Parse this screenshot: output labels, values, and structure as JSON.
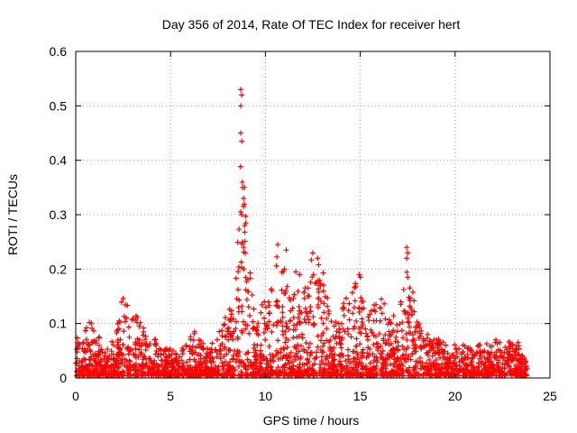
{
  "chart_data": {
    "type": "scatter",
    "title": "Day 356 of 2014, Rate Of TEC Index for receiver hert",
    "xlabel": "GPS time / hours",
    "ylabel": "ROTI / TECUs",
    "xlim": [
      0,
      25
    ],
    "ylim": [
      0,
      0.6
    ],
    "xticks": [
      "0",
      "5",
      "10",
      "15",
      "20",
      "25"
    ],
    "yticks": [
      "0",
      "0.1",
      "0.2",
      "0.3",
      "0.4",
      "0.5",
      "0.6"
    ],
    "grid": true,
    "marker": "+",
    "color": "#ff0000",
    "series": [
      {
        "name": "ROTI",
        "envelope": [
          [
            0.0,
            0.08
          ],
          [
            0.3,
            0.05
          ],
          [
            0.6,
            0.1
          ],
          [
            1.0,
            0.1
          ],
          [
            1.5,
            0.04
          ],
          [
            2.0,
            0.07
          ],
          [
            2.5,
            0.15
          ],
          [
            3.0,
            0.12
          ],
          [
            3.5,
            0.1
          ],
          [
            4.0,
            0.08
          ],
          [
            4.5,
            0.05
          ],
          [
            5.0,
            0.05
          ],
          [
            5.5,
            0.04
          ],
          [
            6.0,
            0.1
          ],
          [
            6.5,
            0.07
          ],
          [
            7.0,
            0.05
          ],
          [
            7.5,
            0.08
          ],
          [
            8.0,
            0.12
          ],
          [
            8.5,
            0.2
          ],
          [
            8.75,
            0.53
          ],
          [
            9.0,
            0.25
          ],
          [
            9.5,
            0.12
          ],
          [
            10.0,
            0.14
          ],
          [
            10.5,
            0.24
          ],
          [
            11.0,
            0.2
          ],
          [
            11.5,
            0.15
          ],
          [
            12.0,
            0.17
          ],
          [
            12.5,
            0.23
          ],
          [
            13.0,
            0.2
          ],
          [
            13.5,
            0.1
          ],
          [
            14.0,
            0.13
          ],
          [
            14.5,
            0.16
          ],
          [
            15.0,
            0.19
          ],
          [
            15.5,
            0.14
          ],
          [
            16.0,
            0.15
          ],
          [
            16.5,
            0.13
          ],
          [
            17.0,
            0.1
          ],
          [
            17.5,
            0.24
          ],
          [
            18.0,
            0.1
          ],
          [
            18.5,
            0.08
          ],
          [
            19.0,
            0.07
          ],
          [
            19.5,
            0.06
          ],
          [
            20.0,
            0.06
          ],
          [
            20.5,
            0.06
          ],
          [
            21.0,
            0.06
          ],
          [
            21.5,
            0.06
          ],
          [
            22.0,
            0.07
          ],
          [
            22.5,
            0.06
          ],
          [
            23.0,
            0.07
          ],
          [
            23.5,
            0.06
          ],
          [
            23.8,
            0.03
          ]
        ],
        "outliers": [
          [
            8.7,
            0.53
          ],
          [
            8.75,
            0.52
          ],
          [
            8.7,
            0.5
          ],
          [
            8.7,
            0.45
          ],
          [
            8.75,
            0.435
          ],
          [
            8.8,
            0.35
          ],
          [
            8.9,
            0.35
          ],
          [
            8.85,
            0.33
          ],
          [
            8.7,
            0.305
          ],
          [
            8.75,
            0.3
          ],
          [
            8.9,
            0.28
          ],
          [
            8.8,
            0.25
          ],
          [
            8.85,
            0.24
          ],
          [
            10.65,
            0.245
          ],
          [
            11.1,
            0.235
          ],
          [
            12.5,
            0.23
          ],
          [
            12.75,
            0.22
          ],
          [
            17.45,
            0.24
          ],
          [
            17.5,
            0.23
          ],
          [
            17.45,
            0.22
          ],
          [
            17.5,
            0.185
          ],
          [
            14.95,
            0.19
          ],
          [
            15.0,
            0.185
          ],
          [
            11.6,
            0.195
          ],
          [
            11.8,
            0.19
          ]
        ]
      }
    ]
  }
}
